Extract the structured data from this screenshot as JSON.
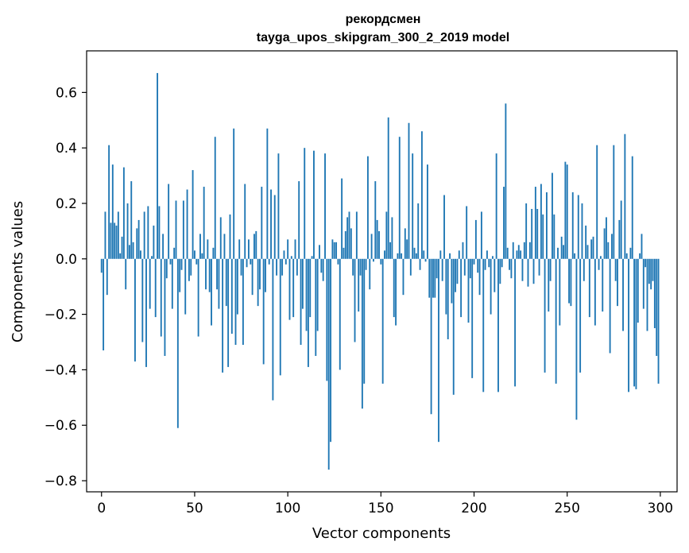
{
  "chart_data": {
    "type": "bar",
    "title": "рекордсмен",
    "subtitle": "tayga_upos_skipgram_300_2_2019 model",
    "xlabel": "Vector components",
    "ylabel": "Components values",
    "xlim": [
      -8,
      309
    ],
    "ylim": [
      -0.84,
      0.75
    ],
    "xticks": [
      0,
      50,
      100,
      150,
      200,
      250,
      300
    ],
    "xtick_labels": [
      "0",
      "50",
      "100",
      "150",
      "200",
      "250",
      "300"
    ],
    "yticks": [
      -0.8,
      -0.6,
      -0.4,
      -0.2,
      0.0,
      0.2,
      0.4,
      0.6
    ],
    "ytick_labels": [
      "−0.8",
      "−0.6",
      "−0.4",
      "−0.2",
      "0.0",
      "0.2",
      "0.4",
      "0.6"
    ],
    "bar_color": "#1f77b4",
    "grid": false,
    "values": [
      -0.05,
      -0.33,
      0.17,
      -0.13,
      0.41,
      0.13,
      0.34,
      0.13,
      0.12,
      0.17,
      0.02,
      0.08,
      0.33,
      -0.11,
      0.2,
      0.05,
      0.28,
      0.06,
      -0.37,
      0.11,
      0.14,
      0.03,
      -0.3,
      0.17,
      -0.39,
      0.19,
      -0.18,
      0.01,
      0.12,
      -0.21,
      0.67,
      0.19,
      -0.28,
      0.09,
      -0.35,
      -0.07,
      0.27,
      -0.02,
      -0.18,
      0.04,
      0.21,
      -0.61,
      -0.12,
      -0.04,
      0.21,
      -0.2,
      0.25,
      -0.08,
      -0.06,
      0.32,
      0.03,
      -0.02,
      -0.28,
      0.09,
      0.02,
      0.26,
      -0.11,
      0.07,
      -0.12,
      -0.24,
      0.04,
      0.44,
      -0.11,
      -0.18,
      0.15,
      -0.41,
      0.09,
      -0.17,
      -0.39,
      0.16,
      -0.27,
      0.47,
      -0.31,
      -0.2,
      0.07,
      -0.06,
      -0.31,
      0.27,
      -0.03,
      0.07,
      -0.02,
      -0.13,
      0.09,
      0.1,
      -0.17,
      -0.11,
      0.26,
      -0.38,
      -0.12,
      0.47,
      -0.02,
      0.25,
      -0.51,
      0.23,
      -0.06,
      0.38,
      -0.42,
      -0.06,
      0.03,
      -0.02,
      0.07,
      -0.22,
      0.01,
      -0.21,
      0.07,
      -0.06,
      0.28,
      -0.31,
      -0.18,
      0.4,
      -0.26,
      -0.39,
      -0.21,
      0.01,
      0.39,
      -0.35,
      -0.26,
      0.05,
      -0.05,
      -0.08,
      0.38,
      -0.44,
      -0.76,
      -0.66,
      0.07,
      0.06,
      0.06,
      -0.02,
      -0.4,
      0.29,
      0.04,
      0.1,
      0.15,
      0.17,
      0.11,
      -0.06,
      -0.3,
      0.17,
      -0.19,
      -0.06,
      -0.54,
      -0.45,
      -0.04,
      0.37,
      -0.11,
      0.09,
      -0.01,
      0.28,
      0.14,
      0.1,
      -0.02,
      -0.45,
      0.03,
      0.17,
      0.51,
      0.06,
      0.15,
      -0.21,
      -0.24,
      0.02,
      0.44,
      0.02,
      -0.13,
      0.11,
      0.07,
      0.49,
      -0.06,
      0.38,
      0.04,
      0.02,
      0.2,
      -0.04,
      0.46,
      0.03,
      -0.01,
      0.34,
      -0.14,
      -0.56,
      -0.14,
      -0.14,
      -0.07,
      -0.66,
      0.03,
      -0.08,
      0.23,
      -0.2,
      -0.29,
      0.02,
      -0.16,
      -0.49,
      -0.12,
      -0.09,
      0.03,
      -0.21,
      0.06,
      -0.06,
      0.19,
      -0.23,
      -0.07,
      -0.43,
      -0.02,
      0.14,
      -0.05,
      -0.13,
      0.17,
      -0.48,
      -0.04,
      0.03,
      -0.03,
      -0.2,
      0.01,
      -0.12,
      0.38,
      -0.48,
      -0.09,
      -0.03,
      0.26,
      0.56,
      0.04,
      -0.04,
      -0.07,
      0.06,
      -0.46,
      0.03,
      0.05,
      0.03,
      -0.08,
      0.06,
      0.2,
      -0.1,
      0.06,
      0.18,
      -0.09,
      0.26,
      0.18,
      -0.06,
      0.27,
      0.16,
      -0.41,
      0.24,
      -0.19,
      -0.08,
      0.31,
      0.16,
      -0.45,
      0.04,
      -0.24,
      0.08,
      0.05,
      0.35,
      0.34,
      -0.16,
      -0.17,
      0.24,
      0.02,
      -0.58,
      0.23,
      -0.41,
      0.2,
      -0.08,
      0.12,
      0.05,
      -0.21,
      0.07,
      0.08,
      -0.24,
      0.41,
      -0.04,
      0.01,
      -0.19,
      0.11,
      0.15,
      0.06,
      -0.34,
      0.09,
      0.41,
      -0.08,
      -0.17,
      0.14,
      0.21,
      -0.26,
      0.45,
      0.02,
      -0.48,
      0.04,
      0.37,
      -0.46,
      -0.47,
      -0.23,
      0.02,
      0.09,
      -0.18,
      -0.03,
      -0.26,
      -0.09,
      -0.11,
      -0.08,
      -0.25,
      -0.35,
      -0.45
    ]
  }
}
